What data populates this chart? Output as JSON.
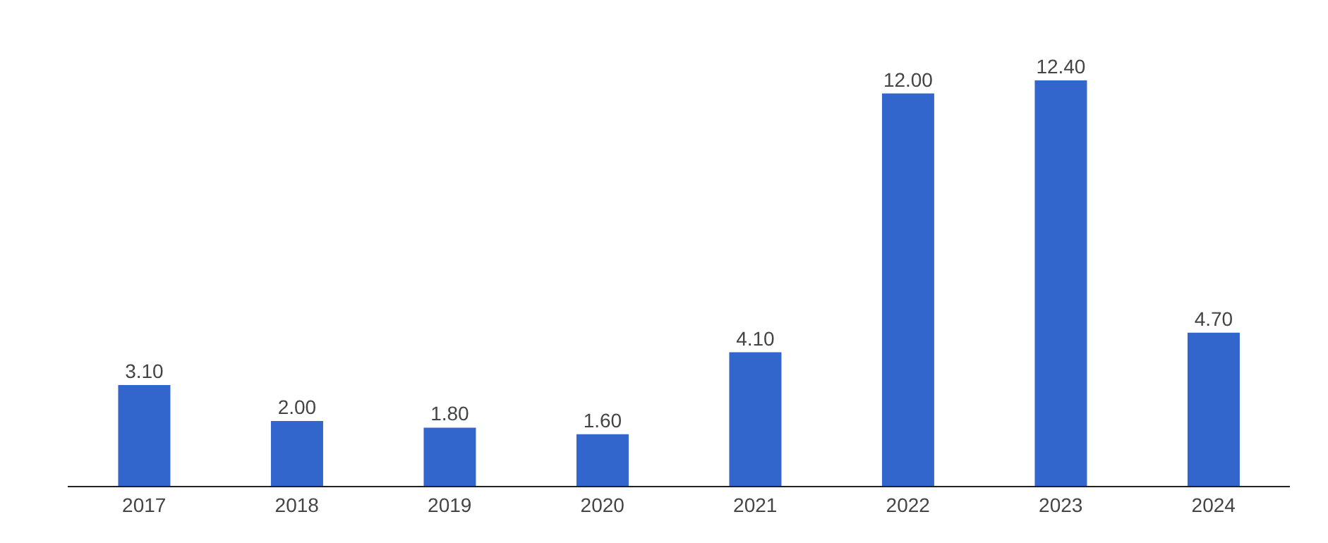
{
  "chart_data": {
    "type": "bar",
    "categories": [
      "2017",
      "2018",
      "2019",
      "2020",
      "2021",
      "2022",
      "2023",
      "2024"
    ],
    "values": [
      3.1,
      2.0,
      1.8,
      1.6,
      4.1,
      12.0,
      12.4,
      4.7
    ],
    "color": "#3366cc",
    "value_labels": [
      "3.10",
      "2.00",
      "1.80",
      "1.60",
      "4.10",
      "12.00",
      "12.40",
      "4.70"
    ],
    "grid": false,
    "legend": false,
    "tick_labels": "x"
  }
}
